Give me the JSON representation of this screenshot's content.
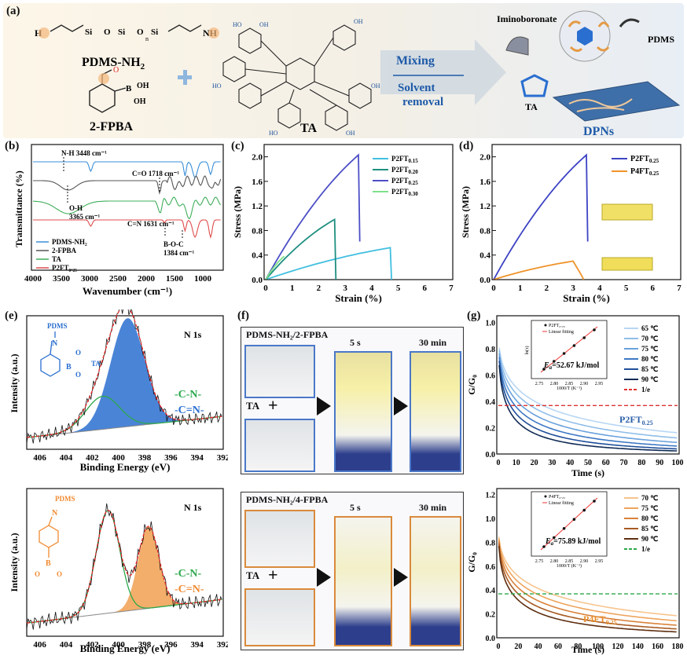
{
  "panel_a": {
    "label": "(a)",
    "pdms": "PDMS-NH",
    "pdms_sub": "2",
    "nh2": "NH",
    "h2n": "H",
    "fpba": "2-FPBA",
    "ta": "TA",
    "mixing": "Mixing",
    "solvent": "Solvent",
    "removal": "removal",
    "iminoboronate": "Iminoboronate",
    "pdms_tag": "PDMS",
    "ta_tag": "TA",
    "dpns": "DPNs",
    "si": "Si",
    "o": "O",
    "n": "n",
    "oh": "OH",
    "b": "B",
    "ho": "HO"
  },
  "panel_b": {
    "label": "(b)",
    "ylabel": "Transmittance (%)",
    "xlabel": "Wavenumber (cm⁻¹)",
    "xticks": [
      "4000",
      "3500",
      "3000",
      "2500",
      "2000",
      "1500",
      "1000"
    ],
    "ann_nh": "N-H  3448 cm⁻¹",
    "ann_co": "C=O 1718 cm⁻¹",
    "ann_oh1": "O-H",
    "ann_oh2": "3365 cm⁻¹",
    "ann_cn": "C=N 1631 cm⁻¹",
    "ann_boc1": "B-O-C",
    "ann_boc2": "1384 cm⁻¹",
    "legend": [
      "PDMS-NH₂",
      "2-FPBA",
      "TA",
      "P2FT₀.₂₅"
    ],
    "colors": [
      "#3a8fd8",
      "#555555",
      "#3fae5a",
      "#e04b4b"
    ]
  },
  "panel_c": {
    "label": "(c)",
    "ylabel": "Stress (MPa)",
    "xlabel": "Strain (%)",
    "yticks": [
      "0.0",
      "0.4",
      "0.8",
      "1.2",
      "1.6",
      "2.0"
    ],
    "xticks": [
      "0",
      "1",
      "2",
      "3",
      "4",
      "5",
      "6",
      "7"
    ],
    "legend": [
      "P2FT",
      "P2FT",
      "P2FT",
      "P2FT"
    ],
    "legend_sub": [
      "0.15",
      "0.20",
      "0.25",
      "0.30"
    ]
  },
  "panel_d": {
    "label": "(d)",
    "ylabel": "Stress (MPa)",
    "xlabel": "Strain (%)",
    "yticks": [
      "0.0",
      "0.4",
      "0.8",
      "1.2",
      "1.6",
      "2.0"
    ],
    "xticks": [
      "0",
      "1",
      "2",
      "3",
      "4",
      "5",
      "6",
      "7"
    ],
    "legend": [
      "P2FT",
      "P4FT"
    ],
    "legend_sub": [
      "0.25",
      "0.25"
    ]
  },
  "panel_e": {
    "label": "(e)",
    "title": "N 1s",
    "ylabel": "Intensity (a.u.)",
    "xlabel": "Binding Energy (eV)",
    "xticks": [
      "406",
      "404",
      "402",
      "400",
      "398",
      "396",
      "394",
      "392"
    ],
    "top_tags": [
      "-C-N-",
      "-C=N-"
    ],
    "bottom_tags": [
      "-C-N-",
      "-C=N-"
    ],
    "struct_pdms": "PDMS",
    "struct_ta": "TA",
    "struct_n": "N",
    "struct_o": "O",
    "struct_b": "B"
  },
  "panel_f": {
    "label": "(f)",
    "top_title": "PDMS-NH₂/2-FPBA",
    "bottom_title": "PDMS-NH₂/4-FPBA",
    "t1": "5 s",
    "t2": "30 min",
    "ta": "TA",
    "plus": "+"
  },
  "panel_g": {
    "label": "(g)",
    "ylabel": "G/G₀",
    "xlabel": "Time (s)",
    "top_yticks": [
      "0.0",
      "0.2",
      "0.4",
      "0.6",
      "0.8",
      "1.0"
    ],
    "top_xticks": [
      "0",
      "10",
      "20",
      "30",
      "40",
      "50",
      "60",
      "70",
      "80",
      "90",
      "100"
    ],
    "top_legend": [
      "65 ℃",
      "70 ℃",
      "75 ℃",
      "80 ℃",
      "85 ℃",
      "90 ℃",
      "1/e"
    ],
    "top_name": "P2FT",
    "top_name_sub": "0.25",
    "top_inset_ea": "=52.67 kJ/mol",
    "top_inset_legend": [
      "P2FT₀.₂₅",
      "Linear fitting"
    ],
    "top_inset_xlabel": "1000/T (K⁻¹)",
    "top_inset_xticks": [
      "2.75",
      "2.80",
      "2.85",
      "2.90",
      "2.95"
    ],
    "bottom_yticks": [
      "0.0",
      "0.2",
      "0.4",
      "0.6",
      "0.8",
      "1.0",
      "1.2"
    ],
    "bottom_xticks": [
      "0",
      "20",
      "40",
      "60",
      "80",
      "100",
      "120",
      "140",
      "160",
      "180"
    ],
    "bottom_legend": [
      "70 ℃",
      "75 ℃",
      "80 ℃",
      "85 ℃",
      "90 ℃",
      "1/e"
    ],
    "bottom_name": "P4FT",
    "bottom_name_sub": "0.25",
    "bottom_inset_ea": "=75.89 kJ/mol",
    "bottom_inset_legend": [
      "P4FT₀.₂₅",
      "Linear fitting"
    ],
    "bottom_inset_xlabel": "1000/T (K⁻¹)",
    "bottom_inset_xticks": [
      "2.75",
      "2.80",
      "2.85",
      "2.90",
      "2.95"
    ],
    "inset_ylabel": "ln(τ)",
    "ea_symbol": "E",
    "ea_sub": "a"
  },
  "chart_data": [
    {
      "type": "line",
      "id": "b",
      "title": "",
      "xlabel": "Wavenumber (cm⁻¹)",
      "ylabel": "Transmittance (%)",
      "xlim": [
        4000,
        600
      ],
      "series": [
        {
          "name": "PDMS-NH₂"
        },
        {
          "name": "2-FPBA"
        },
        {
          "name": "TA"
        },
        {
          "name": "P2FT₀.₂₅"
        }
      ]
    },
    {
      "type": "line",
      "id": "c",
      "xlabel": "Strain (%)",
      "ylabel": "Stress (MPa)",
      "xlim": [
        0,
        7
      ],
      "ylim": [
        0,
        2.2
      ],
      "series": [
        {
          "name": "P2FT0.15",
          "x": [
            0,
            4.7,
            4.75
          ],
          "y": [
            0,
            0.52,
            0
          ]
        },
        {
          "name": "P2FT0.20",
          "x": [
            0,
            2.6,
            2.65
          ],
          "y": [
            0,
            0.98,
            0
          ]
        },
        {
          "name": "P2FT0.25",
          "x": [
            0,
            3.5,
            3.55
          ],
          "y": [
            0,
            2.03,
            0.62
          ]
        },
        {
          "name": "P2FT0.30",
          "x": [
            0,
            0.7
          ],
          "y": [
            0,
            0.38
          ]
        }
      ]
    },
    {
      "type": "line",
      "id": "d",
      "xlabel": "Strain (%)",
      "ylabel": "Stress (MPa)",
      "xlim": [
        0,
        7
      ],
      "ylim": [
        0,
        2.2
      ],
      "series": [
        {
          "name": "P2FT0.25",
          "x": [
            0,
            3.5,
            3.55
          ],
          "y": [
            0,
            2.03,
            0.62
          ]
        },
        {
          "name": "P4FT0.25",
          "x": [
            0,
            3.0,
            3.3,
            3.4
          ],
          "y": [
            0,
            0.3,
            0.08,
            0
          ]
        }
      ]
    },
    {
      "type": "line",
      "id": "e",
      "xlabel": "Binding Energy (eV)",
      "xlim": [
        407,
        392
      ],
      "peaks_top": {
        "-C-N-": 401.2,
        "-C=N-": 399.3
      },
      "peaks_bottom": {
        "-C-N-": 400.8,
        "-C=N-": 397.7
      }
    },
    {
      "type": "line",
      "id": "g-top",
      "xlabel": "Time (s)",
      "ylabel": "G/G₀",
      "xlim": [
        0,
        100
      ],
      "ylim": [
        0,
        1.05
      ],
      "series": [
        {
          "name": "65 ℃"
        },
        {
          "name": "70 ℃"
        },
        {
          "name": "75 ℃"
        },
        {
          "name": "80 ℃"
        },
        {
          "name": "85 ℃"
        },
        {
          "name": "90 ℃"
        }
      ],
      "reference": {
        "name": "1/e",
        "y": 0.368
      },
      "inset": {
        "Ea_kJ_per_mol": 52.67
      }
    },
    {
      "type": "line",
      "id": "g-bottom",
      "xlabel": "Time (s)",
      "ylabel": "G/G₀",
      "xlim": [
        0,
        180
      ],
      "ylim": [
        0,
        1.25
      ],
      "series": [
        {
          "name": "70 ℃"
        },
        {
          "name": "75 ℃"
        },
        {
          "name": "80 ℃"
        },
        {
          "name": "85 ℃"
        },
        {
          "name": "90 ℃"
        }
      ],
      "reference": {
        "name": "1/e",
        "y": 0.368
      },
      "inset": {
        "Ea_kJ_per_mol": 75.89
      }
    }
  ]
}
